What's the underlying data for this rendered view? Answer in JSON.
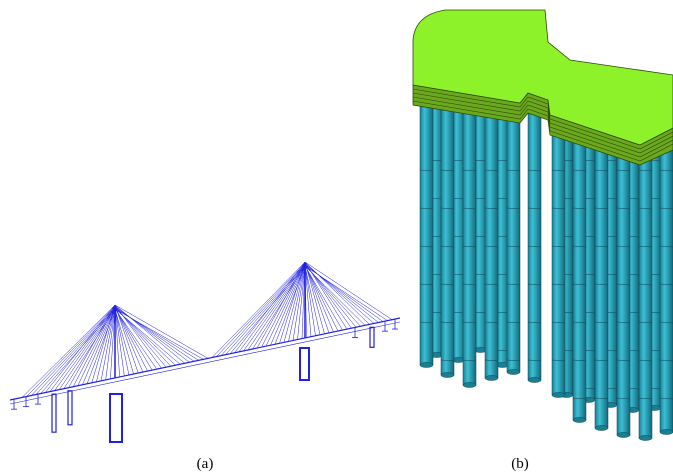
{
  "figures": [
    {
      "label": "(a)"
    },
    {
      "label": "(b)"
    }
  ]
}
